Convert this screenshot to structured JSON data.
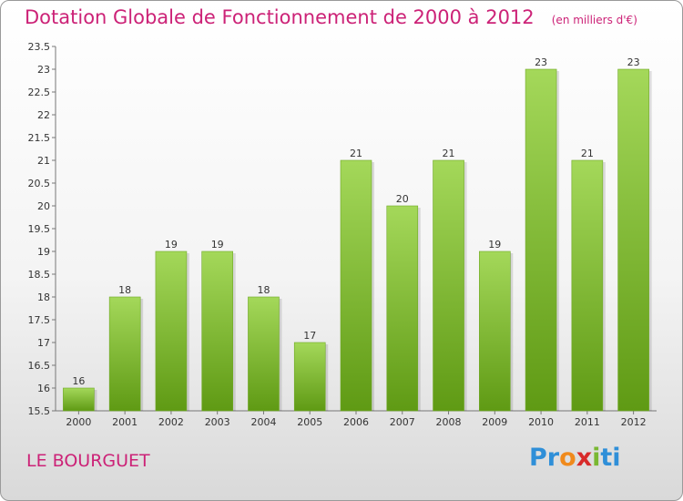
{
  "header": {
    "title": "Dotation Globale de Fonctionnement de 2000 à 2012",
    "unit": "(en milliers d'€)"
  },
  "commune": "LE BOURGUET",
  "logo": {
    "letters": [
      "P",
      "r",
      "o",
      "x",
      "i",
      "t",
      "i"
    ],
    "colors": [
      "#2f8fd8",
      "#2f8fd8",
      "#f08a1c",
      "#d82a2a",
      "#7ab832",
      "#2f8fd8",
      "#2f8fd8"
    ]
  },
  "colors": {
    "bar_light": "#a4d85a",
    "bar_dark": "#5f9a14",
    "accent": "#cc2277"
  },
  "chart_data": {
    "type": "bar",
    "title": "Dotation Globale de Fonctionnement de 2000 à 2012",
    "unit": "(en milliers d'€)",
    "categories": [
      "2000",
      "2001",
      "2002",
      "2003",
      "2004",
      "2005",
      "2006",
      "2007",
      "2008",
      "2009",
      "2010",
      "2011",
      "2012"
    ],
    "values": [
      16,
      18,
      19,
      19,
      18,
      17,
      21,
      20,
      21,
      19,
      23,
      21,
      23
    ],
    "value_labels": [
      "16",
      "18",
      "19",
      "19",
      "18",
      "17",
      "21",
      "20",
      "21",
      "19",
      "23",
      "21",
      "23"
    ],
    "ylim": [
      15.5,
      23.5
    ],
    "yticks": [
      "15.5",
      "16",
      "16.5",
      "17",
      "17.5",
      "18",
      "18.5",
      "19",
      "19.5",
      "20",
      "20.5",
      "21",
      "21.5",
      "22",
      "22.5",
      "23",
      "23.5"
    ],
    "grid": false,
    "legend": "none"
  }
}
